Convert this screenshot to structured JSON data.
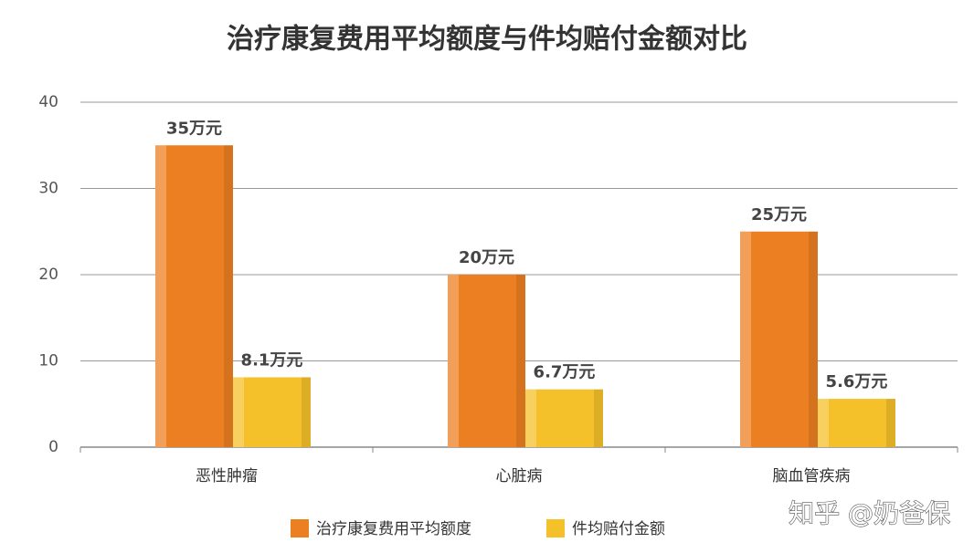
{
  "chart_data": {
    "type": "bar",
    "title": "治疗康复费用平均额度与件均赔付金额对比",
    "categories": [
      "恶性肿瘤",
      "心脏病",
      "脑血管疾病"
    ],
    "series": [
      {
        "name": "治疗康复费用平均额度",
        "color": "#ec7f22",
        "values": [
          35,
          20,
          25
        ],
        "value_labels": [
          "35万元",
          "20万元",
          "25万元"
        ]
      },
      {
        "name": "件均赔付金额",
        "color": "#f5c12a",
        "values": [
          8.1,
          6.7,
          5.6
        ],
        "value_labels": [
          "8.1万元",
          "6.7万元",
          "5.6万元"
        ]
      }
    ],
    "ylim": [
      0,
      40
    ],
    "yticks": [
      0,
      10,
      20,
      30,
      40
    ],
    "grid": true,
    "legend": "bottom",
    "watermark": "知乎 @奶爸保"
  }
}
